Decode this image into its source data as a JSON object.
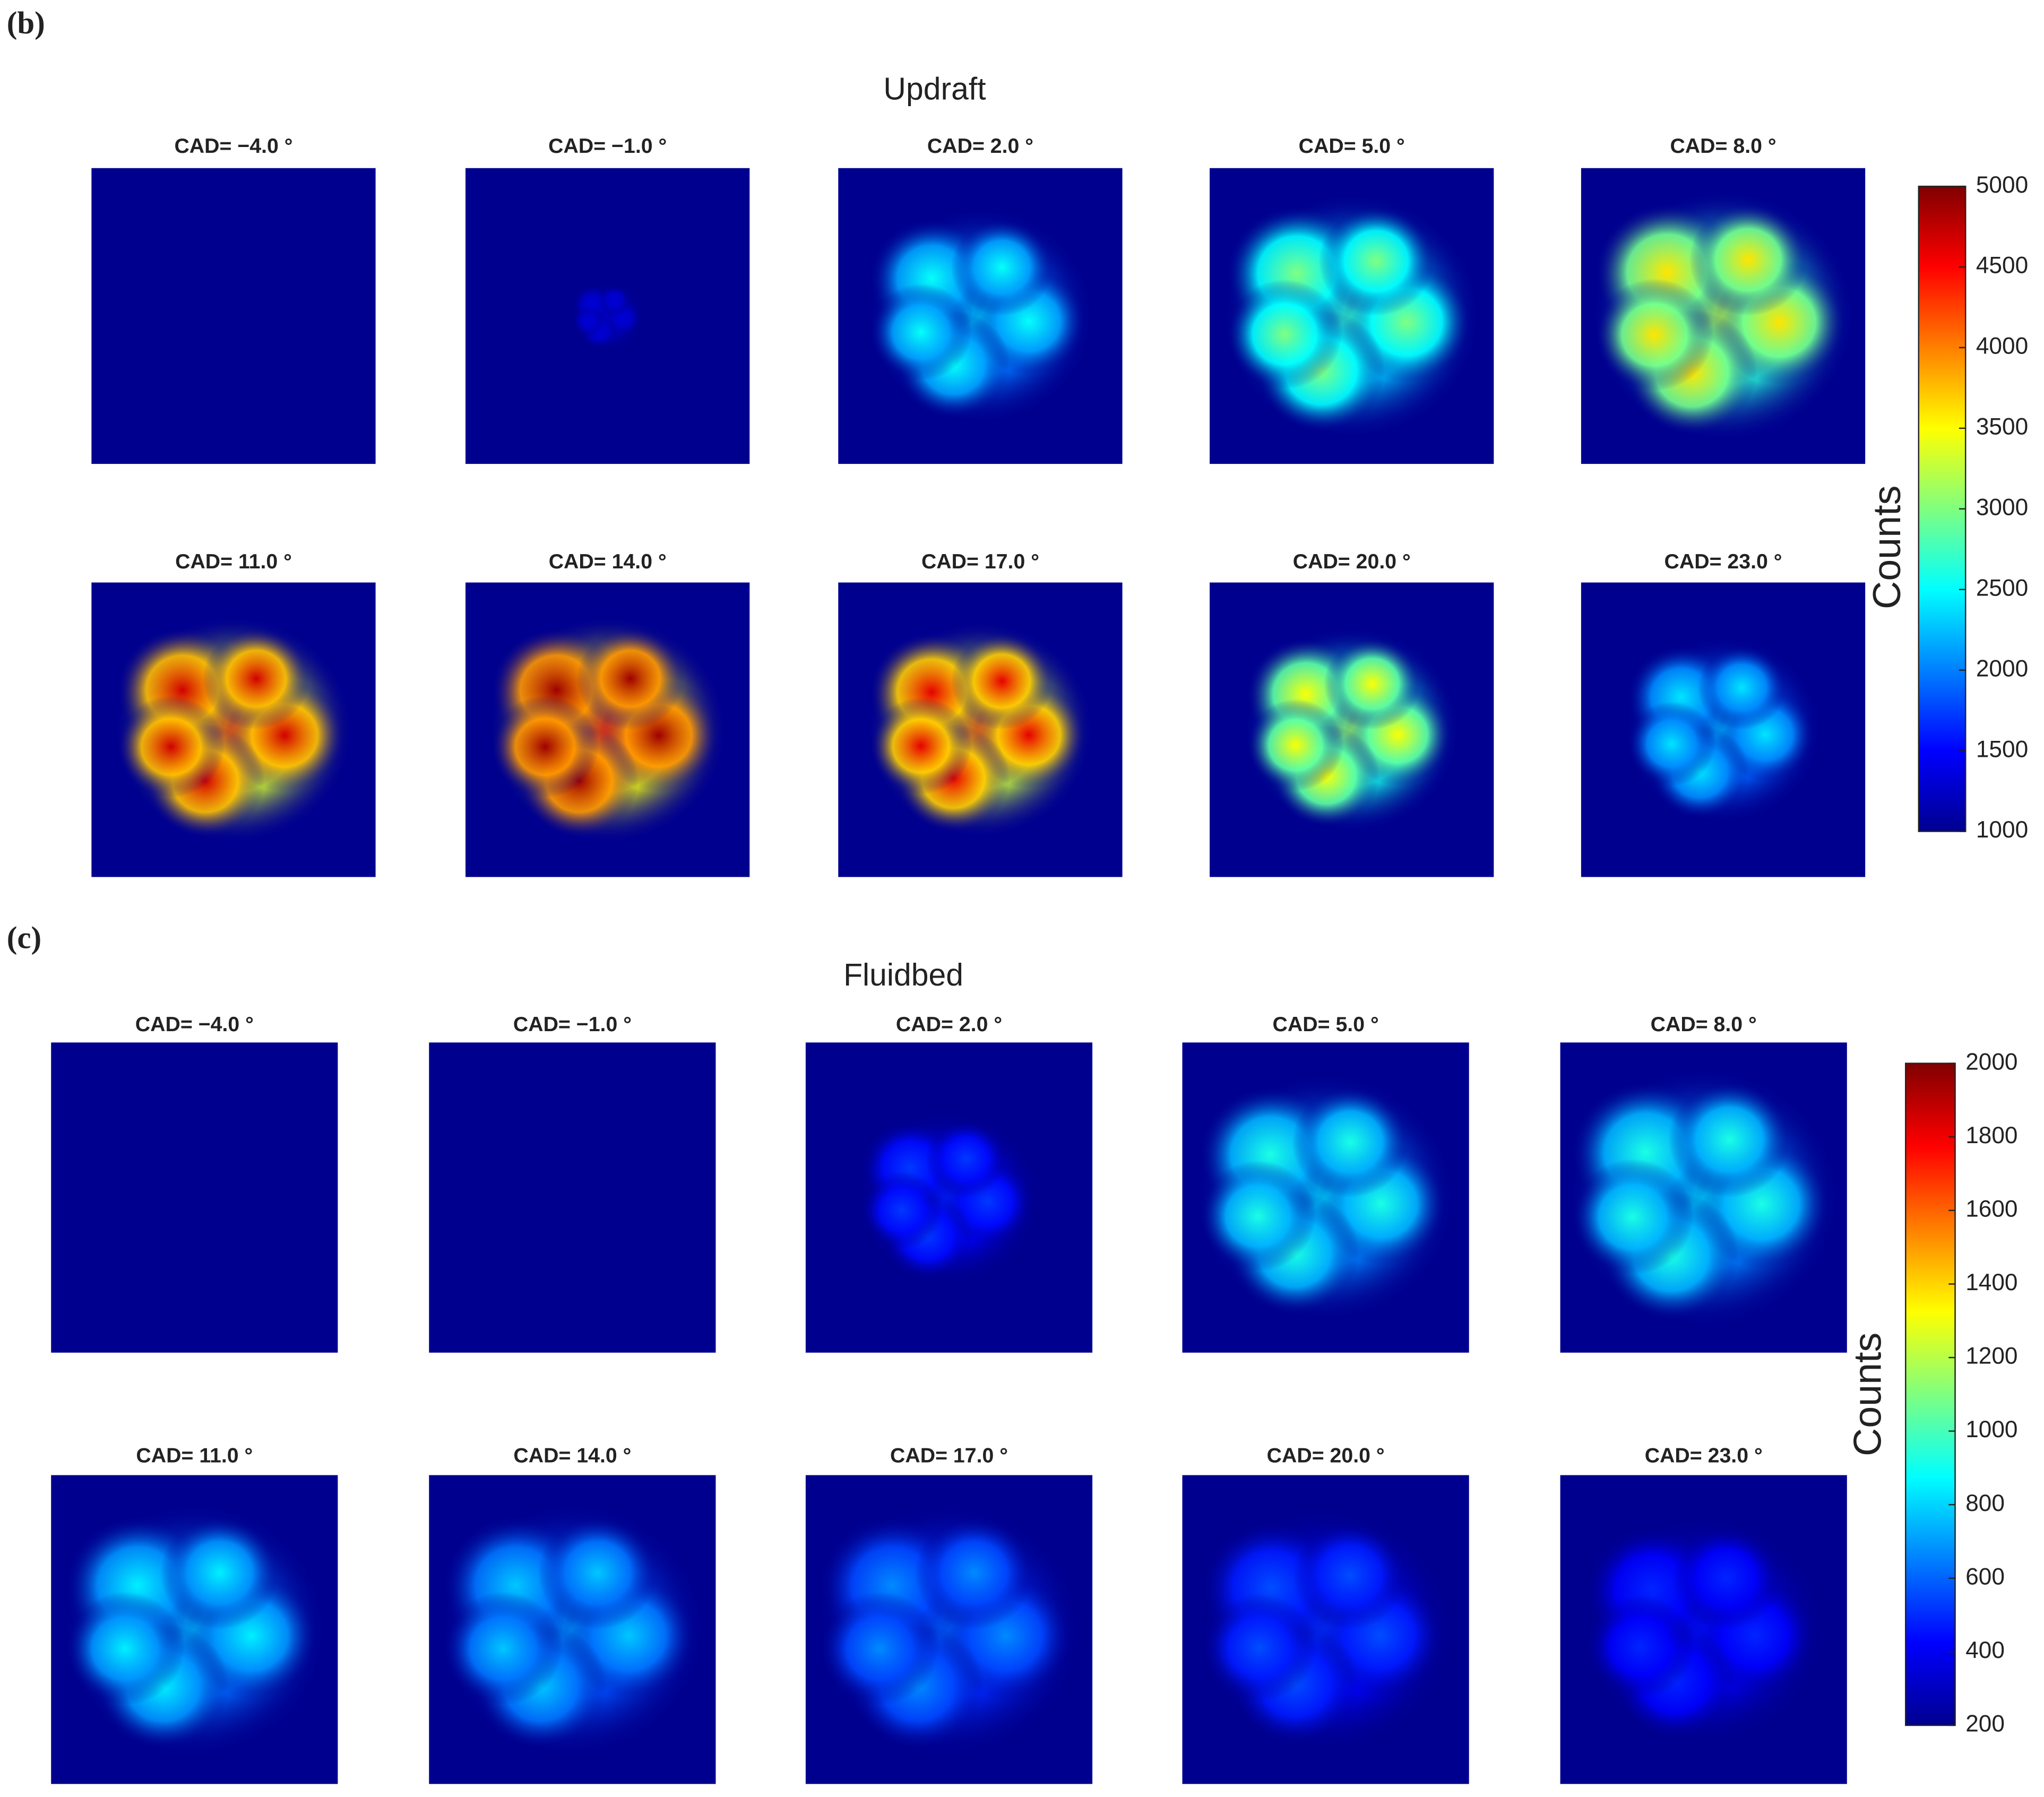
{
  "panels": [
    {
      "label": "(b)",
      "title": "Updraft",
      "subplots": [
        "CAD= −4.0 °",
        "CAD= −1.0 °",
        "CAD=  2.0 °",
        "CAD=  5.0 °",
        "CAD=  8.0 °",
        "CAD=  11.0 °",
        "CAD=  14.0 °",
        "CAD=  17.0 °",
        "CAD=  20.0 °",
        "CAD=  23.0 °"
      ],
      "colorbar": {
        "label": "Counts",
        "lim": [
          1000,
          5000
        ],
        "ticks": [
          1000,
          1500,
          2000,
          2500,
          3000,
          3500,
          4000,
          4500,
          5000
        ]
      }
    },
    {
      "label": "(c)",
      "title": "Fluidbed",
      "subplots": [
        "CAD= −4.0 °",
        "CAD= −1.0 °",
        "CAD=  2.0 °",
        "CAD=  5.0 °",
        "CAD=  8.0 °",
        "CAD=  11.0 °",
        "CAD=  14.0 °",
        "CAD=  17.0 °",
        "CAD=  20.0 °",
        "CAD=  23.0 °"
      ],
      "colorbar": {
        "label": "Counts",
        "lim": [
          200,
          2000
        ],
        "ticks": [
          200,
          400,
          600,
          800,
          1000,
          1200,
          1400,
          1600,
          1800,
          2000
        ]
      }
    }
  ]
}
